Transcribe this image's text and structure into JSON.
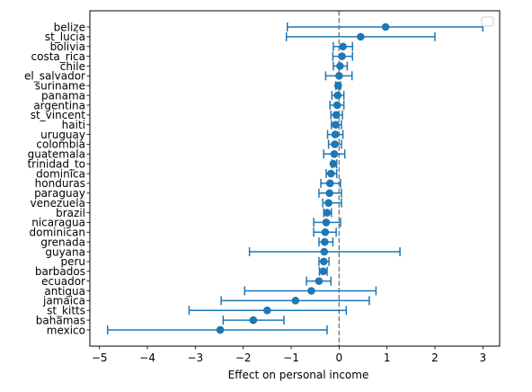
{
  "chart_data": {
    "type": "scatter",
    "subtype": "forest-plot",
    "xlabel": "Effect on personal income",
    "ylabel": "",
    "xlim": [
      -5.2,
      3.35
    ],
    "xticks": [
      -5,
      -4,
      -3,
      -2,
      -1,
      0,
      1,
      2,
      3
    ],
    "xtick_labels": [
      "−5",
      "−4",
      "−3",
      "−2",
      "−1",
      "0",
      "1",
      "2",
      "3"
    ],
    "reference_line_x": 0,
    "grid": false,
    "legend": {
      "placement": "top-right",
      "entries": []
    },
    "colors": {
      "series": "#1f77b4",
      "reference": "#808080"
    },
    "categories": [
      "belize",
      "st_lucia",
      "bolivia",
      "costa_rica",
      "chile",
      "el_salvador",
      "suriname",
      "panama",
      "argentina",
      "st_vincent",
      "haiti",
      "uruguay",
      "colombia",
      "guatemala",
      "trinidad_to",
      "dominica",
      "honduras",
      "paraguay",
      "venezuela",
      "brazil",
      "nicaragua",
      "dominican",
      "grenada",
      "guyana",
      "peru",
      "barbados",
      "ecuador",
      "antigua",
      "jamaica",
      "st_kitts",
      "bahamas",
      "mexico"
    ],
    "estimates": [
      0.97,
      0.45,
      0.08,
      0.06,
      0.02,
      0.0,
      -0.02,
      -0.03,
      -0.04,
      -0.06,
      -0.07,
      -0.08,
      -0.09,
      -0.1,
      -0.12,
      -0.17,
      -0.19,
      -0.2,
      -0.22,
      -0.25,
      -0.27,
      -0.29,
      -0.3,
      -0.31,
      -0.32,
      -0.33,
      -0.42,
      -0.58,
      -0.91,
      -1.5,
      -1.79,
      -2.48
    ],
    "ci_lower": [
      -1.08,
      -1.1,
      -0.12,
      -0.13,
      -0.12,
      -0.28,
      -0.07,
      -0.15,
      -0.19,
      -0.17,
      -0.16,
      -0.24,
      -0.22,
      -0.32,
      -0.15,
      -0.27,
      -0.38,
      -0.42,
      -0.34,
      -0.32,
      -0.53,
      -0.53,
      -0.42,
      -1.87,
      -0.42,
      -0.41,
      -0.68,
      -1.97,
      -2.46,
      -3.13,
      -2.42,
      -4.83
    ],
    "ci_upper": [
      3.0,
      2.0,
      0.28,
      0.28,
      0.17,
      0.27,
      0.03,
      0.1,
      0.1,
      0.07,
      0.05,
      0.08,
      0.05,
      0.12,
      -0.05,
      -0.05,
      0.03,
      0.05,
      0.05,
      -0.16,
      0.03,
      -0.06,
      -0.13,
      1.27,
      -0.21,
      -0.25,
      -0.17,
      0.77,
      0.63,
      0.15,
      -1.15,
      -0.25
    ]
  }
}
